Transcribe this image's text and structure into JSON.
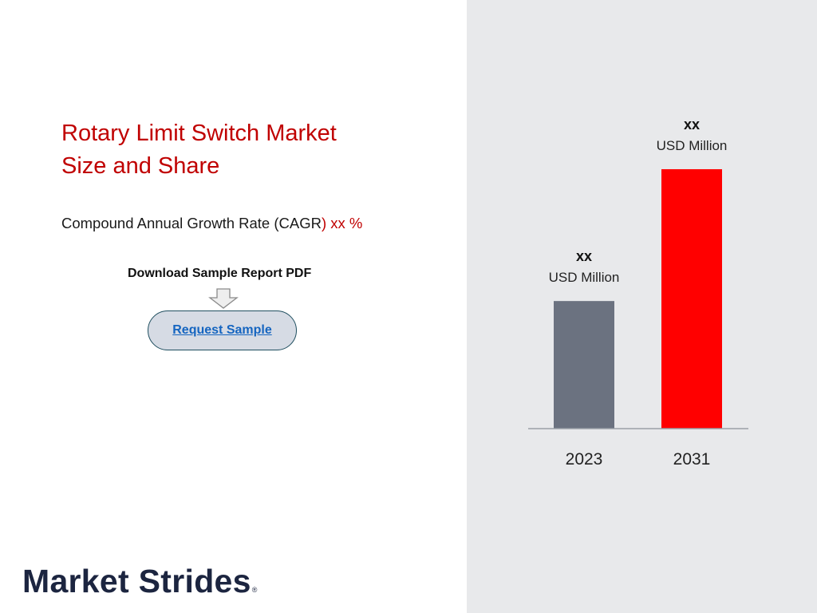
{
  "headline": {
    "title_line1": "Rotary Limit Switch Market",
    "title_line2": "Size and Share"
  },
  "cagr": {
    "prefix": "Compound Annual Growth Rate (CAGR",
    "suffix": ") xx %"
  },
  "download": {
    "label": "Download Sample Report PDF",
    "button_label": "Request Sample"
  },
  "logo": {
    "text": "Market Strides",
    "reg_mark": "®"
  },
  "colors": {
    "title": "#c00000",
    "bar_2023": "#6b7280",
    "bar_2031": "#ff0000",
    "panel": "#e8e9eb"
  },
  "icons": {
    "download_arrow": "down-arrow-icon"
  },
  "chart_data": {
    "type": "bar",
    "categories": [
      "2023",
      "2031"
    ],
    "values": [
      150,
      305
    ],
    "value_labels": [
      "xx",
      "xx"
    ],
    "unit_labels": [
      "USD Million",
      "USD Million"
    ],
    "bar_colors": [
      "#6b7280",
      "#ff0000"
    ],
    "ylim": [
      0,
      320
    ],
    "grid": false,
    "legend": "none"
  }
}
